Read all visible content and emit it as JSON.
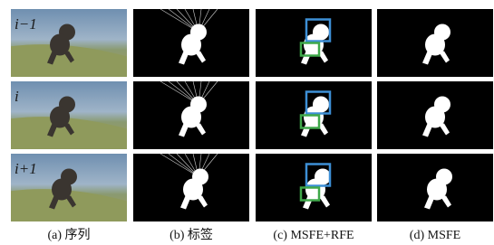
{
  "row_labels": [
    "i−1",
    "i",
    "i+1"
  ],
  "captions": [
    "(a) 序列",
    "(b) 标签",
    "(c) MSFE+RFE",
    "(d) MSFE"
  ]
}
